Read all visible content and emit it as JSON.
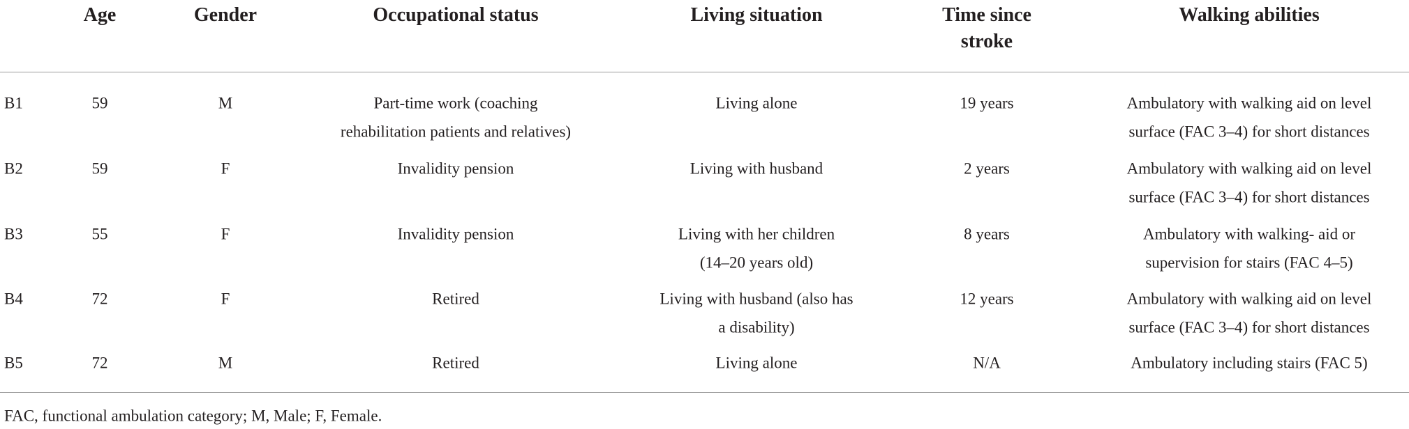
{
  "table": {
    "header": [
      [
        ""
      ],
      [
        "Age"
      ],
      [
        "Gender"
      ],
      [
        "Occupational status"
      ],
      [
        "Living situation"
      ],
      [
        "Time since",
        "stroke"
      ],
      [
        "Walking abilities"
      ]
    ],
    "rows": [
      [
        [
          "B1"
        ],
        [
          "59"
        ],
        [
          "M"
        ],
        [
          "Part-time work (coaching",
          "rehabilitation patients and relatives)"
        ],
        [
          "Living alone"
        ],
        [
          "19 years"
        ],
        [
          "Ambulatory with walking aid on level",
          "surface (FAC 3–4) for short distances"
        ]
      ],
      [
        [
          "B2"
        ],
        [
          "59"
        ],
        [
          "F"
        ],
        [
          "Invalidity pension"
        ],
        [
          "Living with husband"
        ],
        [
          "2 years"
        ],
        [
          "Ambulatory with walking aid on level",
          "surface (FAC 3–4) for short distances"
        ]
      ],
      [
        [
          "B3"
        ],
        [
          "55"
        ],
        [
          "F"
        ],
        [
          "Invalidity pension"
        ],
        [
          "Living with her children",
          "(14–20 years old)"
        ],
        [
          "8 years"
        ],
        [
          "Ambulatory with walking- aid or",
          "supervision for stairs (FAC 4–5)"
        ]
      ],
      [
        [
          "B4"
        ],
        [
          "72"
        ],
        [
          "F"
        ],
        [
          "Retired"
        ],
        [
          "Living with husband (also has",
          "a disability)"
        ],
        [
          "12 years"
        ],
        [
          "Ambulatory with walking aid on level",
          "surface (FAC 3–4) for short distances"
        ]
      ],
      [
        [
          "B5"
        ],
        [
          "72"
        ],
        [
          "M"
        ],
        [
          "Retired"
        ],
        [
          "Living alone"
        ],
        [
          "N/A"
        ],
        [
          "Ambulatory including stairs (FAC 5)"
        ]
      ]
    ],
    "footnote": "FAC, functional ambulation category; M, Male; F, Female."
  }
}
